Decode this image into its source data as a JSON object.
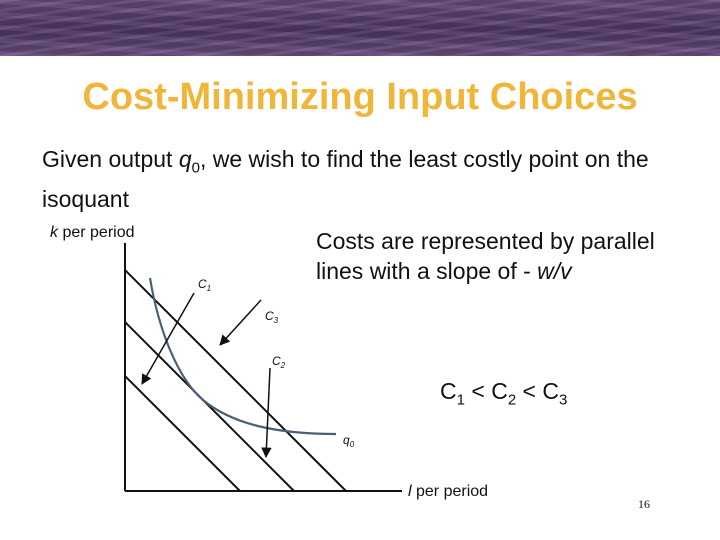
{
  "slide": {
    "title": "Cost-Minimizing Input Choices",
    "subtitle_pre": "Given output ",
    "subtitle_var": "q",
    "subtitle_sub": "0",
    "subtitle_post": ", we wish to find the least costly point on the isoquant",
    "costs_text_main": "Costs are represented by parallel lines with a slope of - ",
    "costs_text_slope": "w/v",
    "page_number": "16"
  },
  "inequality": {
    "c1": "C",
    "s1": "1",
    "op1": " < ",
    "c2": "C",
    "s2": "2",
    "op2": " < ",
    "c3": "C",
    "s3": "3"
  },
  "diagram": {
    "y_axis_var": "k",
    "y_axis_rest": " per period",
    "x_axis_var": "l",
    "x_axis_rest": " per period",
    "c1_base": "C",
    "c1_sub": "1",
    "c2_base": "C",
    "c2_sub": "2",
    "c3_base": "C",
    "c3_sub": "3",
    "iso_base": "q",
    "iso_sub": "0"
  },
  "colors": {
    "title": "#f0b63a",
    "isoquant": "#4a6079",
    "lines": "#111111",
    "banner": "#5a4270"
  }
}
